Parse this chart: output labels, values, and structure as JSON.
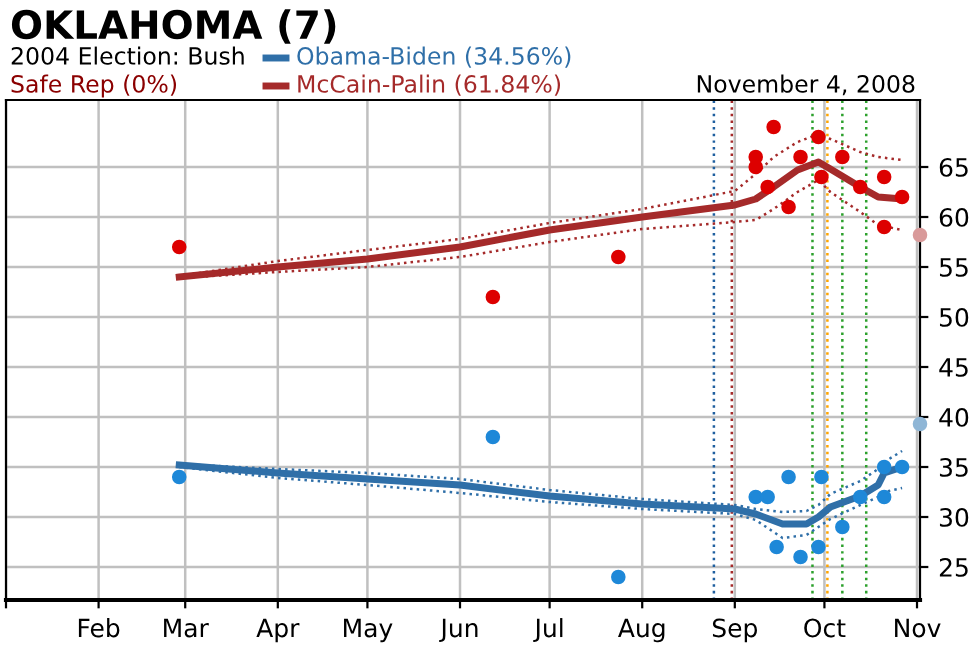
{
  "chart_data": {
    "type": "line",
    "title": "OKLAHOMA (7)",
    "subtitle": "2004 Election: Bush",
    "annotations": [
      "Safe Rep (0%)",
      "November 4, 2008"
    ],
    "xlim": [
      "2008-01-01",
      "2008-11-02"
    ],
    "xticks": [
      {
        "value": "2008-01-01",
        "label": null
      },
      {
        "value": "2008-02-01",
        "label": "Feb"
      },
      {
        "value": "2008-03-01",
        "label": "Mar"
      },
      {
        "value": "2008-04-01",
        "label": "Apr"
      },
      {
        "value": "2008-05-01",
        "label": "May"
      },
      {
        "value": "2008-06-01",
        "label": "Jun"
      },
      {
        "value": "2008-07-01",
        "label": "Jul"
      },
      {
        "value": "2008-08-01",
        "label": "Aug"
      },
      {
        "value": "2008-09-01",
        "label": "Sep"
      },
      {
        "value": "2008-10-01",
        "label": "Oct"
      },
      {
        "value": "2008-11-01",
        "label": "Nov"
      }
    ],
    "ylim": [
      21.7,
      71.7
    ],
    "yticks": [
      25,
      30,
      35,
      40,
      45,
      50,
      55,
      60,
      65
    ],
    "grid": true,
    "legend": "top left",
    "line_style": "solid",
    "series": [
      {
        "name": "Obama-Biden (34.56%)",
        "type": "line",
        "color": "#2f6fa8",
        "x": [
          "2008-02-28",
          "2008-04-01",
          "2008-05-01",
          "2008-06-01",
          "2008-07-01",
          "2008-08-01",
          "2008-09-01",
          "2008-09-08",
          "2008-09-17",
          "2008-09-25",
          "2008-09-29",
          "2008-10-03",
          "2008-10-13",
          "2008-10-19",
          "2008-10-21",
          "2008-10-27"
        ],
        "values": [
          35.2,
          34.4,
          33.8,
          33.2,
          32.1,
          31.3,
          30.8,
          30.3,
          29.3,
          29.3,
          30.0,
          31.0,
          32.1,
          33.2,
          34.4,
          35.0
        ]
      },
      {
        "type": "line",
        "line_style": "dotted",
        "color": "#2f6fa8",
        "x": [
          "2008-02-28",
          "2008-04-01",
          "2008-05-01",
          "2008-06-01",
          "2008-07-01",
          "2008-08-01",
          "2008-09-01",
          "2008-09-08",
          "2008-09-17",
          "2008-09-25",
          "2008-09-29",
          "2008-10-03",
          "2008-10-13",
          "2008-10-19",
          "2008-10-21",
          "2008-10-27"
        ],
        "values": [
          35.3,
          34.8,
          34.4,
          33.8,
          32.7,
          31.8,
          31.2,
          30.8,
          30.5,
          30.6,
          31.2,
          32.3,
          33.6,
          34.8,
          35.5,
          36.6
        ]
      },
      {
        "type": "line",
        "line_style": "dotted",
        "color": "#2f6fa8",
        "x": [
          "2008-02-28",
          "2008-04-01",
          "2008-05-01",
          "2008-06-01",
          "2008-07-01",
          "2008-08-01",
          "2008-09-01",
          "2008-09-08",
          "2008-09-17",
          "2008-09-25",
          "2008-09-29",
          "2008-10-03",
          "2008-10-13",
          "2008-10-19",
          "2008-10-21",
          "2008-10-27"
        ],
        "values": [
          35.0,
          33.9,
          33.2,
          32.4,
          31.5,
          30.8,
          30.3,
          29.7,
          27.9,
          28.2,
          29.0,
          29.8,
          31.2,
          32.0,
          32.5,
          32.9
        ]
      },
      {
        "name": "McCain-Palin (61.84%)",
        "type": "line",
        "color": "#a52a2a",
        "x": [
          "2008-02-28",
          "2008-04-01",
          "2008-05-01",
          "2008-06-01",
          "2008-07-01",
          "2008-08-01",
          "2008-09-01",
          "2008-09-08",
          "2008-09-14",
          "2008-09-22",
          "2008-09-29",
          "2008-10-03",
          "2008-10-13",
          "2008-10-19",
          "2008-10-27"
        ],
        "values": [
          54.0,
          55.0,
          55.8,
          57.0,
          58.7,
          60.0,
          61.2,
          61.8,
          63.0,
          64.7,
          65.5,
          64.8,
          63.0,
          62.0,
          61.8
        ]
      },
      {
        "type": "line",
        "line_style": "dotted",
        "color": "#a52a2a",
        "x": [
          "2008-02-28",
          "2008-04-01",
          "2008-05-01",
          "2008-06-01",
          "2008-07-01",
          "2008-08-01",
          "2008-09-01",
          "2008-09-08",
          "2008-09-14",
          "2008-09-22",
          "2008-09-29",
          "2008-10-03",
          "2008-10-13",
          "2008-10-19",
          "2008-10-27"
        ],
        "values": [
          54.1,
          55.6,
          56.7,
          57.8,
          59.4,
          60.8,
          62.6,
          64.3,
          66.0,
          67.5,
          68.3,
          67.8,
          66.5,
          66.0,
          65.7
        ]
      },
      {
        "type": "line",
        "line_style": "dotted",
        "color": "#a52a2a",
        "x": [
          "2008-02-28",
          "2008-04-01",
          "2008-05-01",
          "2008-06-01",
          "2008-07-01",
          "2008-08-01",
          "2008-09-01",
          "2008-09-08",
          "2008-09-14",
          "2008-09-22",
          "2008-09-29",
          "2008-10-03",
          "2008-10-13",
          "2008-10-19",
          "2008-10-27"
        ],
        "values": [
          53.9,
          54.5,
          55.0,
          56.0,
          57.5,
          58.8,
          59.5,
          59.7,
          60.8,
          62.5,
          63.7,
          62.5,
          60.5,
          59.2,
          58.7
        ]
      },
      {
        "type": "scatter",
        "color": "#1e88d8",
        "x": [
          "2008-02-28",
          "2008-06-12",
          "2008-07-24",
          "2008-09-08",
          "2008-09-12",
          "2008-09-15",
          "2008-09-19",
          "2008-09-23",
          "2008-09-29",
          "2008-09-30",
          "2008-10-07",
          "2008-10-13",
          "2008-10-21",
          "2008-10-21",
          "2008-10-27"
        ],
        "values": [
          34,
          38,
          24,
          32,
          32,
          27,
          34,
          26,
          27,
          34,
          29,
          32,
          35,
          32,
          35
        ]
      },
      {
        "type": "scatter",
        "color": "#dd0000",
        "x": [
          "2008-02-28",
          "2008-06-12",
          "2008-07-24",
          "2008-09-08",
          "2008-09-08",
          "2008-09-12",
          "2008-09-14",
          "2008-09-19",
          "2008-09-23",
          "2008-09-29",
          "2008-09-30",
          "2008-10-07",
          "2008-10-13",
          "2008-10-21",
          "2008-10-21",
          "2008-10-27"
        ],
        "values": [
          57,
          52,
          56,
          66,
          65,
          63,
          69,
          61,
          66,
          68,
          64,
          66,
          63,
          59,
          64,
          62
        ]
      },
      {
        "type": "scatter",
        "color": "#8fb6d6",
        "x": [
          "2008-11-02"
        ],
        "values": [
          39.3
        ]
      },
      {
        "type": "scatter",
        "color": "#d99a9a",
        "x": [
          "2008-11-02"
        ],
        "values": [
          58.2
        ]
      }
    ],
    "ref_lines": [
      {
        "axis": "x",
        "value": "2008-08-25",
        "color": "#1f5f9f",
        "line_style": "dotted"
      },
      {
        "axis": "x",
        "value": "2008-08-31",
        "color": "#a52a2a",
        "line_style": "dotted"
      },
      {
        "axis": "x",
        "value": "2008-09-27",
        "color": "#2ca02c",
        "line_style": "dotted"
      },
      {
        "axis": "x",
        "value": "2008-10-02",
        "color": "#ffa500",
        "line_style": "dotted"
      },
      {
        "axis": "x",
        "value": "2008-10-07",
        "color": "#2ca02c",
        "line_style": "dotted"
      },
      {
        "axis": "x",
        "value": "2008-10-15",
        "color": "#2ca02c",
        "line_style": "dotted"
      }
    ]
  }
}
